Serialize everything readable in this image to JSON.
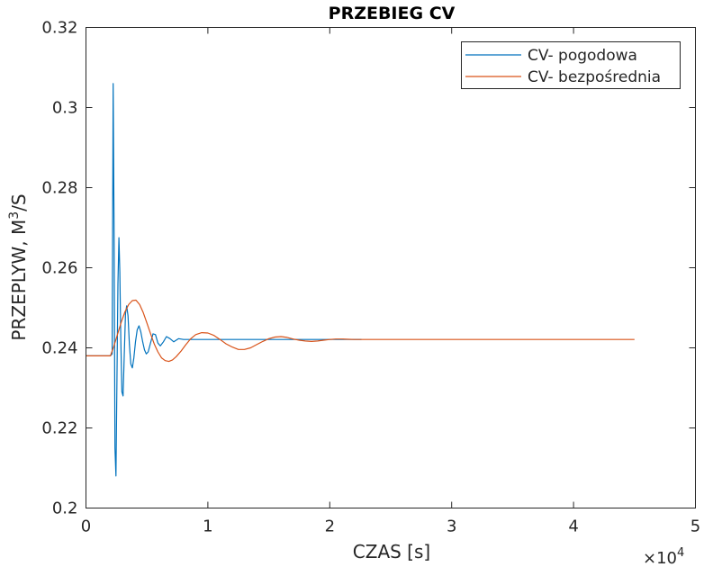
{
  "chart_data": {
    "type": "line",
    "title": "PRZEBIEG CV",
    "xlabel": "CZAS [s]",
    "ylabel_main": "PRZEPLYW, M",
    "ylabel_sup": "3",
    "ylabel_tail": "/S",
    "xlim": [
      0,
      50000
    ],
    "ylim": [
      0.2,
      0.32
    ],
    "x_ticks": [
      0,
      10000,
      20000,
      30000,
      40000,
      50000
    ],
    "x_tick_labels": [
      "0",
      "1",
      "2",
      "3",
      "4",
      "5"
    ],
    "x_exponent_base": "×10",
    "x_exponent": "4",
    "y_ticks": [
      0.2,
      0.22,
      0.24,
      0.26,
      0.28,
      0.3,
      0.32
    ],
    "y_tick_labels": [
      "0.2",
      "0.22",
      "0.24",
      "0.26",
      "0.28",
      "0.3",
      "0.32"
    ],
    "grid": false,
    "legend_position": "top-right",
    "series": [
      {
        "name": "CV- pogodowa",
        "color": "#0072BD",
        "points": [
          [
            0,
            0.238
          ],
          [
            2000,
            0.238
          ],
          [
            2150,
            0.2385
          ],
          [
            2230,
            0.306
          ],
          [
            2310,
            0.266
          ],
          [
            2380,
            0.215
          ],
          [
            2460,
            0.208
          ],
          [
            2540,
            0.232
          ],
          [
            2620,
            0.256
          ],
          [
            2700,
            0.2675
          ],
          [
            2780,
            0.259
          ],
          [
            2860,
            0.242
          ],
          [
            2950,
            0.229
          ],
          [
            3040,
            0.228
          ],
          [
            3140,
            0.238
          ],
          [
            3240,
            0.2485
          ],
          [
            3340,
            0.2505
          ],
          [
            3450,
            0.248
          ],
          [
            3560,
            0.241
          ],
          [
            3680,
            0.236
          ],
          [
            3800,
            0.235
          ],
          [
            3930,
            0.2375
          ],
          [
            4060,
            0.2415
          ],
          [
            4200,
            0.2445
          ],
          [
            4350,
            0.2455
          ],
          [
            4500,
            0.244
          ],
          [
            4650,
            0.2415
          ],
          [
            4800,
            0.2395
          ],
          [
            4950,
            0.2385
          ],
          [
            5100,
            0.239
          ],
          [
            5300,
            0.2413
          ],
          [
            5500,
            0.2435
          ],
          [
            5700,
            0.2433
          ],
          [
            5900,
            0.2412
          ],
          [
            6100,
            0.2405
          ],
          [
            6350,
            0.2415
          ],
          [
            6600,
            0.2428
          ],
          [
            6900,
            0.2423
          ],
          [
            7200,
            0.2415
          ],
          [
            7600,
            0.2423
          ],
          [
            8000,
            0.2421
          ],
          [
            9000,
            0.2421
          ],
          [
            12000,
            0.2421
          ],
          [
            16000,
            0.2421
          ],
          [
            22000,
            0.2421
          ],
          [
            22600,
            0.2421
          ]
        ]
      },
      {
        "name": "CV- bezpośrednia",
        "color": "#D95319",
        "points": [
          [
            0,
            0.238
          ],
          [
            2000,
            0.238
          ],
          [
            2300,
            0.2405
          ],
          [
            2600,
            0.2435
          ],
          [
            2900,
            0.2465
          ],
          [
            3200,
            0.249
          ],
          [
            3500,
            0.2508
          ],
          [
            3800,
            0.2518
          ],
          [
            4100,
            0.2519
          ],
          [
            4400,
            0.2508
          ],
          [
            4700,
            0.2488
          ],
          [
            5000,
            0.2462
          ],
          [
            5300,
            0.2435
          ],
          [
            5600,
            0.241
          ],
          [
            5900,
            0.239
          ],
          [
            6200,
            0.2375
          ],
          [
            6500,
            0.2368
          ],
          [
            6800,
            0.2366
          ],
          [
            7100,
            0.237
          ],
          [
            7400,
            0.2378
          ],
          [
            7800,
            0.2392
          ],
          [
            8200,
            0.2408
          ],
          [
            8600,
            0.2423
          ],
          [
            9000,
            0.2433
          ],
          [
            9500,
            0.2438
          ],
          [
            10000,
            0.2437
          ],
          [
            10500,
            0.2431
          ],
          [
            11000,
            0.2421
          ],
          [
            11500,
            0.241
          ],
          [
            12000,
            0.2402
          ],
          [
            12500,
            0.2396
          ],
          [
            13000,
            0.2396
          ],
          [
            13500,
            0.24
          ],
          [
            14000,
            0.2408
          ],
          [
            14500,
            0.2416
          ],
          [
            15000,
            0.2423
          ],
          [
            15500,
            0.2427
          ],
          [
            16000,
            0.2428
          ],
          [
            16500,
            0.2426
          ],
          [
            17000,
            0.2422
          ],
          [
            17500,
            0.2419
          ],
          [
            18000,
            0.2417
          ],
          [
            18500,
            0.2416
          ],
          [
            19000,
            0.2417
          ],
          [
            19500,
            0.2419
          ],
          [
            20000,
            0.2421
          ],
          [
            20500,
            0.2422
          ],
          [
            21000,
            0.2422
          ],
          [
            22000,
            0.2421
          ],
          [
            25000,
            0.2421
          ],
          [
            30000,
            0.2421
          ],
          [
            35000,
            0.2421
          ],
          [
            40000,
            0.2421
          ],
          [
            45000,
            0.2421
          ]
        ]
      }
    ]
  }
}
